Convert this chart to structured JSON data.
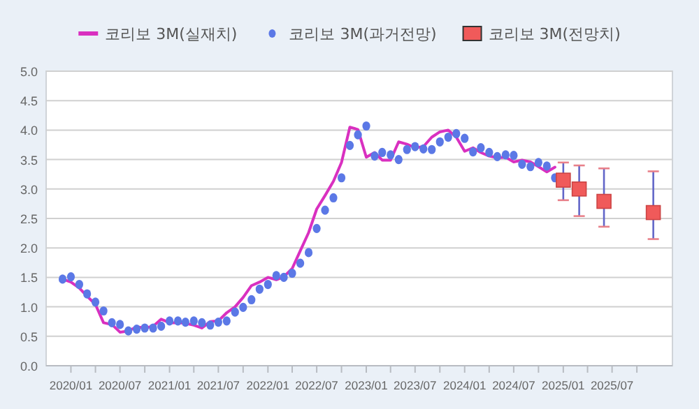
{
  "chart_data": {
    "type": "line",
    "xlim": [
      "2019-10",
      "2026-02-10"
    ],
    "ylim": [
      0,
      5
    ],
    "xticks": [
      {
        "value": "2020-01",
        "label": "2020/01"
      },
      {
        "value": "2020-04",
        "label": null
      },
      {
        "value": "2020-07",
        "label": "2020/07"
      },
      {
        "value": "2020-10",
        "label": null
      },
      {
        "value": "2021-01",
        "label": "2021/01"
      },
      {
        "value": "2021-04",
        "label": null
      },
      {
        "value": "2021-07",
        "label": "2021/07"
      },
      {
        "value": "2021-10",
        "label": null
      },
      {
        "value": "2022-01",
        "label": "2022/01"
      },
      {
        "value": "2022-04",
        "label": null
      },
      {
        "value": "2022-07",
        "label": "2022/07"
      },
      {
        "value": "2022-10",
        "label": null
      },
      {
        "value": "2023-01",
        "label": "2023/01"
      },
      {
        "value": "2023-04",
        "label": null
      },
      {
        "value": "2023-07",
        "label": "2023/07"
      },
      {
        "value": "2023-10",
        "label": null
      },
      {
        "value": "2024-01",
        "label": "2024/01"
      },
      {
        "value": "2024-04",
        "label": null
      },
      {
        "value": "2024-07",
        "label": "2024/07"
      },
      {
        "value": "2024-10",
        "label": null
      },
      {
        "value": "2025-01",
        "label": "2025/01"
      },
      {
        "value": "2025-04",
        "label": null
      },
      {
        "value": "2025-07",
        "label": "2025/07"
      },
      {
        "value": "2025-10",
        "label": null
      }
    ],
    "yticks": [
      {
        "value": 0,
        "label": "0.0"
      },
      {
        "value": 0.5,
        "label": "0.5"
      },
      {
        "value": 1,
        "label": "1.0"
      },
      {
        "value": 1.5,
        "label": "1.5"
      },
      {
        "value": 2,
        "label": "2.0"
      },
      {
        "value": 2.5,
        "label": "2.5"
      },
      {
        "value": 3,
        "label": "3.0"
      },
      {
        "value": 3.5,
        "label": "3.5"
      },
      {
        "value": 4,
        "label": "4.0"
      },
      {
        "value": 4.5,
        "label": "4.5"
      },
      {
        "value": 5,
        "label": "5.0"
      }
    ],
    "grid": "y",
    "legend": "top",
    "line_style": "solid",
    "series": [
      {
        "name": "코리보 3M(실재치)",
        "marker": "none",
        "color": "#d930c0",
        "x": [
          "2019-12",
          "2020-01",
          "2020-02",
          "2020-03",
          "2020-04",
          "2020-05",
          "2020-06",
          "2020-07",
          "2020-08",
          "2020-09",
          "2020-10",
          "2020-11",
          "2020-12",
          "2021-01",
          "2021-02",
          "2021-03",
          "2021-04",
          "2021-05",
          "2021-06",
          "2021-07",
          "2021-08",
          "2021-09",
          "2021-10",
          "2021-11",
          "2021-12",
          "2022-01",
          "2022-02",
          "2022-03",
          "2022-04",
          "2022-05",
          "2022-06",
          "2022-07",
          "2022-08",
          "2022-09",
          "2022-10",
          "2022-11",
          "2022-12",
          "2023-01",
          "2023-02",
          "2023-03",
          "2023-04",
          "2023-05",
          "2023-06",
          "2023-07",
          "2023-08",
          "2023-09",
          "2023-10",
          "2023-11",
          "2023-12",
          "2024-01",
          "2024-02",
          "2024-03",
          "2024-04",
          "2024-05",
          "2024-06",
          "2024-07",
          "2024-08",
          "2024-09",
          "2024-10",
          "2024-11",
          "2024-12"
        ],
        "values": [
          1.47,
          1.42,
          1.32,
          1.18,
          1.04,
          0.73,
          0.7,
          0.57,
          0.59,
          0.66,
          0.64,
          0.67,
          0.79,
          0.73,
          0.73,
          0.72,
          0.69,
          0.64,
          0.75,
          0.76,
          0.9,
          1.0,
          1.16,
          1.36,
          1.42,
          1.5,
          1.46,
          1.51,
          1.65,
          1.95,
          2.26,
          2.66,
          2.89,
          3.13,
          3.45,
          4.05,
          4.01,
          3.54,
          3.62,
          3.49,
          3.49,
          3.8,
          3.76,
          3.7,
          3.72,
          3.88,
          3.97,
          4.0,
          3.88,
          3.64,
          3.7,
          3.62,
          3.56,
          3.53,
          3.54,
          3.46,
          3.49,
          3.46,
          3.38,
          3.29,
          3.37
        ]
      },
      {
        "name": "코리보 3M(과거전망)",
        "type": "scatter",
        "marker": "circle",
        "color": "#5b78e6",
        "x": [
          "2019-12",
          "2020-01",
          "2020-02",
          "2020-03",
          "2020-04",
          "2020-05",
          "2020-06",
          "2020-07",
          "2020-08",
          "2020-09",
          "2020-10",
          "2020-11",
          "2020-12",
          "2021-01",
          "2021-02",
          "2021-03",
          "2021-04",
          "2021-05",
          "2021-06",
          "2021-07",
          "2021-08",
          "2021-09",
          "2021-10",
          "2021-11",
          "2021-12",
          "2022-01",
          "2022-02",
          "2022-03",
          "2022-04",
          "2022-05",
          "2022-06",
          "2022-07",
          "2022-08",
          "2022-09",
          "2022-10",
          "2022-11",
          "2022-12",
          "2023-01",
          "2023-02",
          "2023-03",
          "2023-04",
          "2023-05",
          "2023-06",
          "2023-07",
          "2023-08",
          "2023-09",
          "2023-10",
          "2023-11",
          "2023-12",
          "2024-01",
          "2024-02",
          "2024-03",
          "2024-04",
          "2024-05",
          "2024-06",
          "2024-07",
          "2024-08",
          "2024-09",
          "2024-10",
          "2024-11",
          "2024-12"
        ],
        "values": [
          1.47,
          1.51,
          1.38,
          1.22,
          1.08,
          0.93,
          0.73,
          0.7,
          0.59,
          0.62,
          0.64,
          0.64,
          0.67,
          0.76,
          0.76,
          0.74,
          0.76,
          0.73,
          0.69,
          0.74,
          0.76,
          0.91,
          0.99,
          1.12,
          1.3,
          1.38,
          1.53,
          1.5,
          1.57,
          1.74,
          1.92,
          2.33,
          2.64,
          2.85,
          3.19,
          3.74,
          3.92,
          4.07,
          3.56,
          3.62,
          3.58,
          3.5,
          3.67,
          3.72,
          3.68,
          3.67,
          3.8,
          3.88,
          3.94,
          3.86,
          3.63,
          3.7,
          3.62,
          3.55,
          3.58,
          3.57,
          3.42,
          3.38,
          3.45,
          3.39,
          3.19
        ]
      },
      {
        "name": "코리보 3M(전망치)",
        "type": "scatter",
        "marker": "square",
        "color": "#f05a5a",
        "x": [
          "2025-01",
          "2025-03",
          "2025-06",
          "2025-12"
        ],
        "values": [
          3.15,
          3.0,
          2.79,
          2.6
        ],
        "errors": [
          [
            2.81,
            3.45
          ],
          [
            2.54,
            3.4
          ],
          [
            2.36,
            3.35
          ],
          [
            2.15,
            3.3
          ]
        ]
      }
    ]
  }
}
